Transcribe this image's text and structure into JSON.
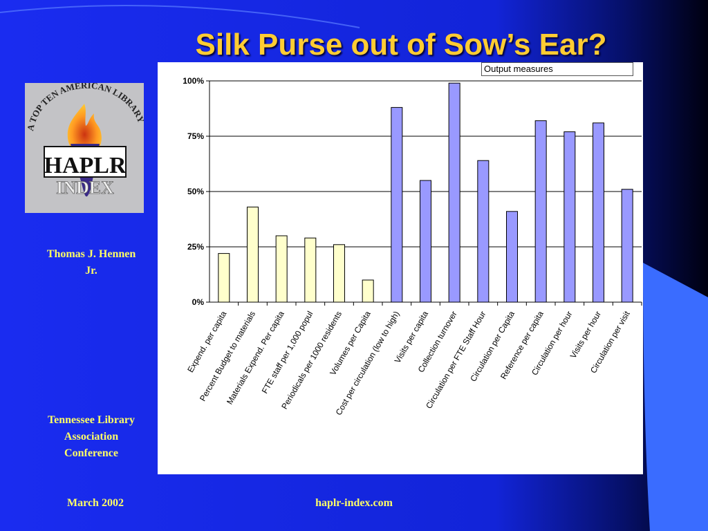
{
  "slide": {
    "title": "Silk Purse out of Sow’s Ear?",
    "author": "Thomas J. Hennen Jr.",
    "conference": "Tennessee Library Association Conference",
    "date": "March 2002",
    "website": "haplr-index.com",
    "colors": {
      "background": "#1428e6",
      "title": "#ffcc33",
      "side_text": "#ffff66",
      "input_bar": "#ffffcc",
      "output_bar": "#9999ff"
    }
  },
  "logo": {
    "arc_text": "A TOP TEN AMERICAN LIBRARY",
    "name": "HAPLR",
    "subtitle": "INDEX"
  },
  "chart_data": {
    "type": "bar",
    "title": "",
    "xlabel": "",
    "ylabel": "",
    "ylim": [
      0,
      1
    ],
    "yticks": [
      "0%",
      "25%",
      "50%",
      "75%",
      "100%"
    ],
    "grid": true,
    "legend_label": "Output measures",
    "categories": [
      "Expend. per capita",
      "Percent Budget to materials",
      "Materials Expend. Per capita",
      "FTE staff per 1,000 popul",
      "Periodicals per 1000 residents",
      "Volumes per Capita",
      "Cost per circulation (low to high)",
      "Visits per capita",
      "Collection turnover",
      "Circulation per FTE Staff Hour",
      "Circulation per Capita",
      "Reference per capita",
      "Circulation per hour",
      "Visits per hour",
      "Circulation per visit"
    ],
    "values": [
      0.22,
      0.43,
      0.3,
      0.29,
      0.26,
      0.1,
      0.88,
      0.55,
      0.99,
      0.64,
      0.41,
      0.82,
      0.77,
      0.81,
      0.51
    ],
    "bar_colors": [
      "#ffffcc",
      "#ffffcc",
      "#ffffcc",
      "#ffffcc",
      "#ffffcc",
      "#ffffcc",
      "#9999ff",
      "#9999ff",
      "#9999ff",
      "#9999ff",
      "#9999ff",
      "#9999ff",
      "#9999ff",
      "#9999ff",
      "#9999ff"
    ]
  }
}
